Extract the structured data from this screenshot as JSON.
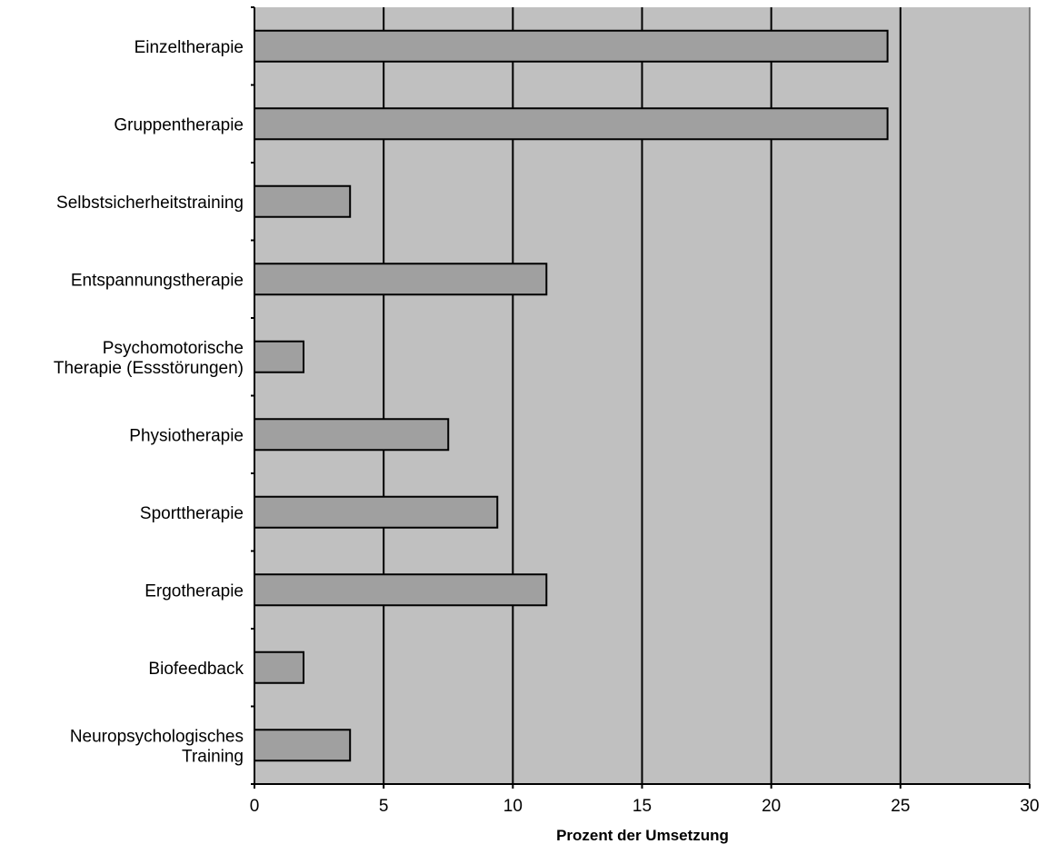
{
  "chart_data": {
    "type": "bar",
    "orientation": "horizontal",
    "categories": [
      "Einzeltherapie",
      "Gruppentherapie",
      "Selbstsicherheitstraining",
      "Entspannungstherapie",
      "Psychomotorische Therapie (Essstörungen)",
      "Physiotherapie",
      "Sporttherapie",
      "Ergotherapie",
      "Biofeedback",
      "Neuropsychologisches Training"
    ],
    "category_label_lines": [
      [
        "Einzeltherapie"
      ],
      [
        "Gruppentherapie"
      ],
      [
        "Selbstsicherheitstraining"
      ],
      [
        "Entspannungstherapie"
      ],
      [
        "Psychomotorische",
        "Therapie (Essstörungen)"
      ],
      [
        "Physiotherapie"
      ],
      [
        "Sporttherapie"
      ],
      [
        "Ergotherapie"
      ],
      [
        "Biofeedback"
      ],
      [
        "Neuropsychologisches",
        "Training"
      ]
    ],
    "values": [
      24.5,
      24.5,
      3.7,
      11.3,
      1.9,
      7.5,
      9.4,
      11.3,
      1.9,
      3.7
    ],
    "xlim": [
      0,
      30
    ],
    "xticks": [
      0,
      5,
      10,
      15,
      20,
      25,
      30
    ],
    "xlabel": "Prozent der Umsetzung",
    "ylabel": "",
    "grid": "vertical",
    "colors": {
      "plot_background": "#c0c0c0",
      "bar_fill": "#a0a0a0",
      "bar_stroke": "#000000",
      "gridline": "#000000",
      "axis": "#000000"
    }
  }
}
